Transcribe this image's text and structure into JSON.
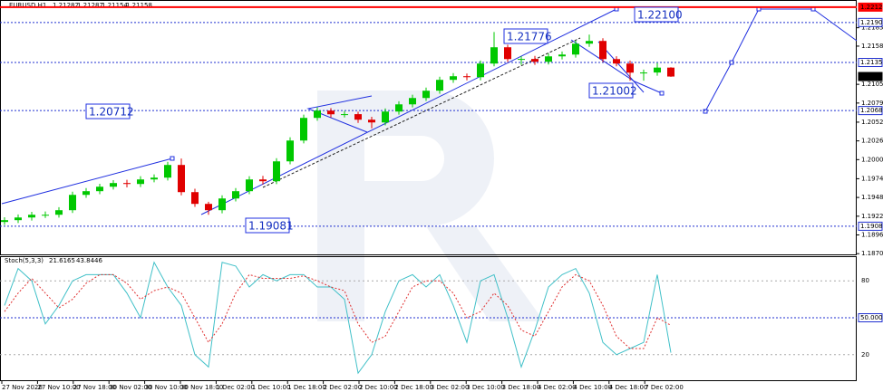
{
  "chart_data": [
    {
      "type": "candlestick",
      "title": "EURUSD,H1",
      "ohlc": [
        [
          1.1914,
          1.19205,
          1.191,
          1.19165
        ],
        [
          1.19165,
          1.19245,
          1.19125,
          1.19202
        ],
        [
          1.19202,
          1.1928,
          1.1916,
          1.1924
        ],
        [
          1.1924,
          1.19285,
          1.19195,
          1.1924
        ],
        [
          1.1924,
          1.19345,
          1.192,
          1.19303
        ],
        [
          1.19303,
          1.1956,
          1.19265,
          1.19516
        ],
        [
          1.19516,
          1.1961,
          1.19475,
          1.19567
        ],
        [
          1.19567,
          1.1967,
          1.19525,
          1.19629
        ],
        [
          1.19629,
          1.1972,
          1.1959,
          1.1968
        ],
        [
          1.1968,
          1.19725,
          1.1962,
          1.19667
        ],
        [
          1.19667,
          1.19775,
          1.19625,
          1.1973
        ],
        [
          1.1973,
          1.198,
          1.1969,
          1.19755
        ],
        [
          1.19755,
          1.19975,
          1.19715,
          1.19931
        ],
        [
          1.19931,
          1.2002,
          1.1951,
          1.19554
        ],
        [
          1.19554,
          1.196,
          1.1935,
          1.19391
        ],
        [
          1.19391,
          1.1942,
          1.1924,
          1.19303
        ],
        [
          1.19303,
          1.1951,
          1.1926,
          1.19466
        ],
        [
          1.19466,
          1.1961,
          1.19425,
          1.19567
        ],
        [
          1.19567,
          1.19775,
          1.19525,
          1.1973
        ],
        [
          1.1973,
          1.1978,
          1.1966,
          1.19705
        ],
        [
          1.19705,
          1.20025,
          1.19665,
          1.19981
        ],
        [
          1.19981,
          1.20315,
          1.1994,
          1.2027
        ],
        [
          1.2027,
          1.2063,
          1.2023,
          1.20584
        ],
        [
          1.20584,
          1.2073,
          1.20545,
          1.20685
        ],
        [
          1.20685,
          1.2072,
          1.2059,
          1.20634
        ],
        [
          1.20634,
          1.2068,
          1.2059,
          1.20636
        ],
        [
          1.20636,
          1.2067,
          1.20515,
          1.20559
        ],
        [
          1.20559,
          1.206,
          1.2044,
          1.20521
        ],
        [
          1.20521,
          1.20715,
          1.2048,
          1.20672
        ],
        [
          1.20672,
          1.20815,
          1.2063,
          1.20772
        ],
        [
          1.20772,
          1.20905,
          1.2073,
          1.2086
        ],
        [
          1.2086,
          1.21005,
          1.2082,
          1.20961
        ],
        [
          1.20961,
          1.21155,
          1.2092,
          1.21112
        ],
        [
          1.21112,
          1.21205,
          1.2107,
          1.21162
        ],
        [
          1.21162,
          1.212,
          1.21105,
          1.21149
        ],
        [
          1.21149,
          1.2138,
          1.21105,
          1.21338
        ],
        [
          1.21338,
          1.21776,
          1.213,
          1.21564
        ],
        [
          1.21564,
          1.216,
          1.2136,
          1.214
        ],
        [
          1.214,
          1.2144,
          1.2132,
          1.21402
        ],
        [
          1.21402,
          1.21445,
          1.2132,
          1.21363
        ],
        [
          1.21363,
          1.2148,
          1.21325,
          1.21438
        ],
        [
          1.21438,
          1.21505,
          1.21395,
          1.21463
        ],
        [
          1.21463,
          1.21655,
          1.2142,
          1.21614
        ],
        [
          1.21614,
          1.2174,
          1.2157,
          1.21652
        ],
        [
          1.21652,
          1.2169,
          1.2136,
          1.214
        ],
        [
          1.214,
          1.2144,
          1.213,
          1.21338
        ],
        [
          1.21338,
          1.2138,
          1.211,
          1.21212
        ],
        [
          1.21212,
          1.21255,
          1.211,
          1.21214
        ],
        [
          1.21214,
          1.21345,
          1.2117,
          1.21282
        ],
        [
          1.21282,
          1.21287,
          1.21154,
          1.21158
        ]
      ],
      "up_color": "#00c800",
      "down_color": "#e00000",
      "ylim": [
        1.1869,
        1.2222
      ],
      "yticks": [
        {
          "value": 1.187,
          "label": "1.18700"
        },
        {
          "value": 1.1896,
          "label": "1.18960"
        },
        {
          "value": 1.1922,
          "label": "1.19220"
        },
        {
          "value": 1.1948,
          "label": "1.19480"
        },
        {
          "value": 1.1974,
          "label": "1.19740"
        },
        1.20005,
        1.20265,
        1.20525,
        {
          "value": 1.2079,
          "label": "1.20790"
        },
        {
          "value": 1.2105,
          "label": "1.21050"
        },
        {
          "value": 1.2158,
          "label": "1.21580"
        },
        1.21835
      ],
      "levels": [
        {
          "value": 1.22121,
          "color": "#ff0000",
          "line": "solid"
        },
        {
          "value": 1.21908,
          "color": "#2030d0",
          "line": "dotted"
        },
        {
          "value": 1.21353,
          "color": "#2030d0",
          "line": "dotted"
        },
        {
          "value": 1.21158,
          "color": "#000000",
          "line": "none"
        },
        {
          "value": 1.20686,
          "color": "#2030d0",
          "line": "dotted"
        },
        {
          "value": 1.19081,
          "color": "#2030d0",
          "line": "dotted"
        }
      ],
      "annotations": [
        "1.22100",
        "1.21776",
        "1.21002",
        "1.20712",
        "1.19081"
      ],
      "x_labels": [
        "27 Nov 2020",
        "27 Nov 10:00",
        "27 Nov 18:00",
        "30 Nov 02:00",
        "30 Nov 10:00",
        "30 Nov 18:00",
        "1 Dec 02:00",
        "1 Dec 10:00",
        "1 Dec 18:00",
        "2 Dec 02:00",
        "2 Dec 10:00",
        "2 Dec 18:00",
        "3 Dec 02:00",
        "3 Dec 10:00",
        "3 Dec 18:00",
        "4 Dec 02:00",
        "4 Dec 10:00",
        "4 Dec 18:00",
        "7 Dec 02:00"
      ]
    },
    {
      "type": "line",
      "title": "Stoch(5,3,3)",
      "series": [
        {
          "name": "Main",
          "color": "#40c0c8",
          "values": [
            60,
            90,
            80,
            45,
            60,
            80,
            85,
            85,
            85,
            70,
            50,
            95,
            75,
            60,
            20,
            10,
            95,
            92,
            75,
            85,
            80,
            85,
            85,
            75,
            75,
            65,
            5,
            20,
            55,
            80,
            85,
            75,
            85,
            60,
            30,
            80,
            85,
            50,
            10,
            40,
            75,
            85,
            90,
            70,
            30,
            20,
            25,
            30,
            85,
            21.6165
          ]
        },
        {
          "name": "Signal",
          "color": "#e03030",
          "values": [
            55,
            70,
            82,
            70,
            58,
            65,
            78,
            85,
            85,
            78,
            65,
            72,
            75,
            70,
            50,
            30,
            45,
            70,
            85,
            82,
            82,
            82,
            84,
            80,
            75,
            72,
            45,
            30,
            35,
            55,
            75,
            80,
            80,
            70,
            50,
            55,
            70,
            60,
            40,
            35,
            55,
            75,
            85,
            80,
            60,
            35,
            25,
            25,
            50,
            43.8446
          ]
        }
      ],
      "ylim": [
        0,
        100
      ],
      "yticks": [
        80,
        20
      ],
      "levels": [
        {
          "value": 50,
          "label": "50.0000"
        }
      ]
    }
  ]
}
